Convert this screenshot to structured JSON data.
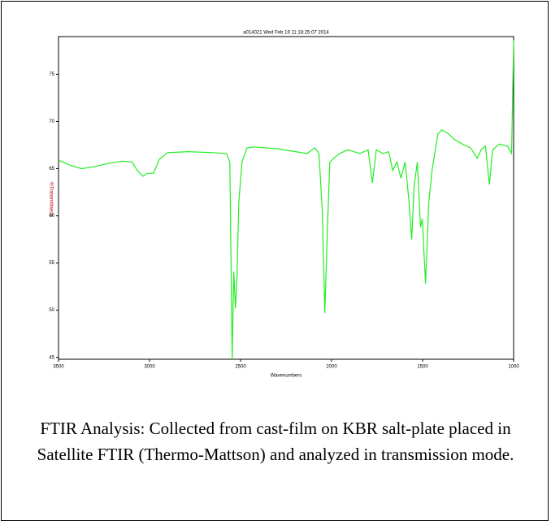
{
  "chart_data": {
    "type": "line",
    "title": "a014021  Wed Feb 19 11:18:25:07 2014",
    "x_label": "Wavenumbers",
    "y_label": "%Transmittance",
    "xlim": [
      3500,
      1000
    ],
    "xticks": [
      3500,
      3000,
      2500,
      2000,
      1500,
      1000
    ],
    "ylim": [
      44.8,
      79
    ],
    "yticks": [
      45,
      50,
      55,
      60,
      65,
      70,
      75
    ],
    "grid": false,
    "series": [
      {
        "name": "a014021",
        "color": "#22ee22",
        "x": [
          3500,
          3441,
          3374,
          3306,
          3239,
          3149,
          3095,
          3068,
          3036,
          3014,
          2978,
          2946,
          2901,
          2789,
          2654,
          2577,
          2559,
          2546,
          2537,
          2528,
          2519,
          2510,
          2492,
          2465,
          2429,
          2294,
          2136,
          2114,
          2091,
          2069,
          2051,
          2037,
          2024,
          2010,
          1988,
          1956,
          1911,
          1844,
          1799,
          1776,
          1754,
          1718,
          1686,
          1664,
          1641,
          1619,
          1596,
          1574,
          1560,
          1547,
          1529,
          1511,
          1502,
          1484,
          1466,
          1448,
          1416,
          1394,
          1358,
          1326,
          1281,
          1236,
          1200,
          1178,
          1155,
          1133,
          1115,
          1079,
          1034,
          1011,
          1000
        ],
        "values": [
          65.9,
          65.4,
          65.0,
          65.2,
          65.5,
          65.8,
          65.7,
          64.8,
          64.2,
          64.5,
          64.5,
          66.0,
          66.7,
          66.8,
          66.7,
          66.6,
          65.7,
          44.8,
          54.1,
          50.2,
          53.6,
          61.4,
          65.7,
          67.2,
          67.3,
          67.1,
          66.6,
          66.9,
          67.2,
          66.6,
          60.5,
          49.7,
          57.9,
          65.7,
          66.1,
          66.6,
          67.0,
          66.6,
          67.0,
          63.5,
          67.0,
          66.6,
          66.8,
          64.8,
          65.7,
          64.0,
          65.7,
          61.4,
          57.5,
          63.1,
          65.7,
          58.8,
          59.7,
          52.8,
          61.4,
          64.8,
          68.7,
          69.1,
          68.7,
          68.1,
          67.6,
          67.2,
          66.1,
          67.0,
          67.4,
          63.3,
          67.0,
          67.6,
          67.4,
          66.6,
          78.6
        ]
      }
    ]
  },
  "caption": "FTIR Analysis: Collected from cast-film on KBR salt-plate placed in Satellite FTIR (Thermo-Mattson) and analyzed in transmission mode."
}
